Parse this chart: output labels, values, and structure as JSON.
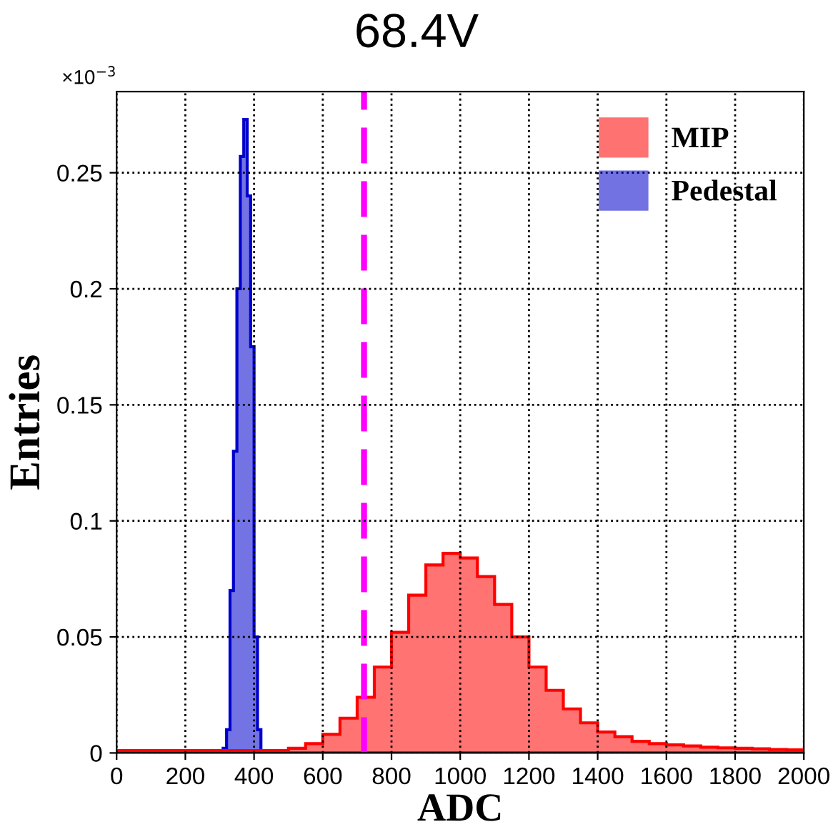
{
  "chart_data": {
    "type": "histogram",
    "title": "68.4V",
    "xlabel": "ADC",
    "ylabel": "Entries",
    "annotations": [
      "×10$^{−3}$"
    ],
    "xlim": [
      0,
      2000
    ],
    "xticks": [
      0,
      200,
      400,
      600,
      800,
      1000,
      1200,
      1400,
      1600,
      1800,
      2000
    ],
    "ylim": [
      0,
      0.285
    ],
    "yticks": [
      0,
      0.05,
      0.1,
      0.15,
      0.2,
      0.25
    ],
    "grid": true,
    "legend": "top right",
    "bins": [
      0,
      100,
      200,
      300,
      310,
      320,
      330,
      340,
      350,
      360,
      370,
      380,
      390,
      400,
      410,
      420,
      450,
      500,
      550,
      600,
      650,
      700,
      750,
      800,
      850,
      900,
      950,
      1000,
      1050,
      1100,
      1150,
      1200,
      1250,
      1300,
      1350,
      1400,
      1450,
      1500,
      1550,
      1600,
      1650,
      1700,
      1750,
      1800,
      1850,
      1900,
      1950,
      2000
    ],
    "series": [
      {
        "name": "MIP",
        "color": "#ff0000",
        "values": [
          0.001,
          0.001,
          0.001,
          0.001,
          0.001,
          0.001,
          0.001,
          0.001,
          0.001,
          0.001,
          0.001,
          0.001,
          0.001,
          0.001,
          0.001,
          0.001,
          0.001,
          0.002,
          0.004,
          0.008,
          0.015,
          0.024,
          0.037,
          0.052,
          0.068,
          0.081,
          0.086,
          0.084,
          0.076,
          0.064,
          0.05,
          0.037,
          0.027,
          0.019,
          0.013,
          0.009,
          0.007,
          0.005,
          0.004,
          0.0035,
          0.003,
          0.0025,
          0.0022,
          0.002,
          0.0018,
          0.0015,
          0.0013
        ]
      },
      {
        "name": "Pedestal",
        "color": "#0000cc",
        "values": [
          0,
          0,
          0,
          0,
          0.002,
          0.01,
          0.07,
          0.13,
          0.2,
          0.257,
          0.273,
          0.24,
          0.175,
          0.05,
          0.01,
          0,
          0,
          0,
          0,
          0,
          0,
          0,
          0,
          0,
          0,
          0,
          0,
          0,
          0,
          0,
          0,
          0,
          0,
          0,
          0,
          0,
          0,
          0,
          0,
          0,
          0,
          0,
          0,
          0,
          0,
          0,
          0
        ]
      }
    ],
    "ref_lines": [
      {
        "axis": "x",
        "value": 720,
        "color": "#ff00ff",
        "line_style": "dashed"
      }
    ]
  }
}
